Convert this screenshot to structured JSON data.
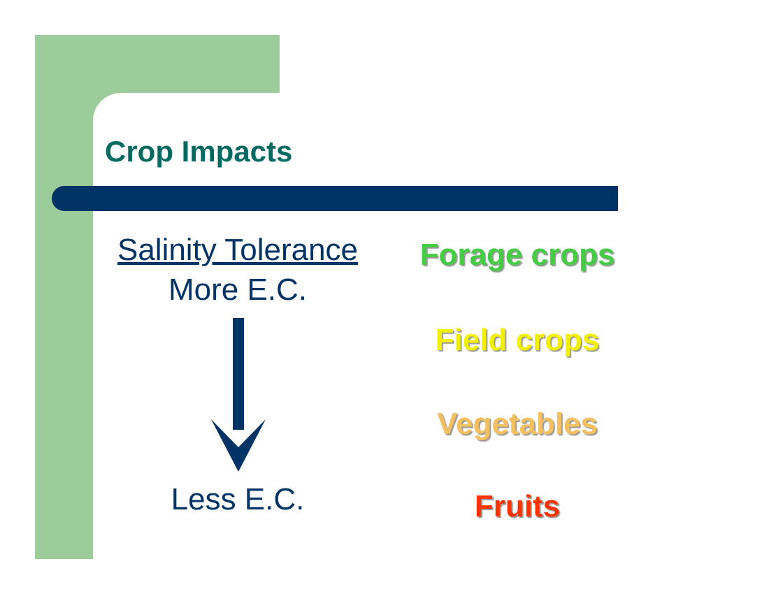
{
  "title": "Crop Impacts",
  "left": {
    "heading": "Salinity Tolerance",
    "top_label": "More E.C.",
    "bottom_label": "Less E.C."
  },
  "crops": [
    "Forage crops",
    "Field crops",
    "Vegetables",
    "Fruits"
  ]
}
